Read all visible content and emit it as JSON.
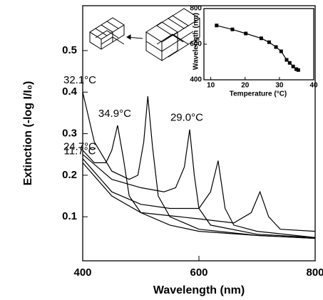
{
  "chart_data": [
    {
      "type": "line",
      "xlabel": "Wavelength (nm)",
      "ylabel": "Extinction (-log I/I₀)",
      "xlim": [
        400,
        800
      ],
      "xticks": [
        400,
        600,
        800
      ],
      "ylim": [
        -0.006,
        0.608
      ],
      "yticks": [
        0.1,
        0.2,
        0.3,
        0.4,
        0.5
      ],
      "series": [
        {
          "name": "34.9°C",
          "color": "#000000",
          "x": [
            400,
            420,
            440,
            450,
            460,
            470,
            480,
            500,
            550,
            600,
            700,
            800
          ],
          "values": [
            0.26,
            0.23,
            0.23,
            0.26,
            0.32,
            0.24,
            0.15,
            0.11,
            0.08,
            0.065,
            0.055,
            0.048
          ]
        },
        {
          "name": "32.1°C",
          "color": "#000000",
          "x": [
            400,
            420,
            450,
            480,
            495,
            505,
            512,
            520,
            530,
            550,
            600,
            700,
            800
          ],
          "values": [
            0.4,
            0.28,
            0.21,
            0.19,
            0.2,
            0.28,
            0.39,
            0.27,
            0.15,
            0.1,
            0.07,
            0.055,
            0.048
          ]
        },
        {
          "name": "29.0°C",
          "color": "#000000",
          "x": [
            400,
            450,
            500,
            540,
            560,
            575,
            584,
            592,
            600,
            620,
            700,
            800
          ],
          "values": [
            0.25,
            0.19,
            0.17,
            0.16,
            0.17,
            0.22,
            0.31,
            0.2,
            0.12,
            0.08,
            0.058,
            0.05
          ]
        },
        {
          "name": "24.7°C",
          "color": "#000000",
          "x": [
            400,
            450,
            500,
            550,
            600,
            620,
            633,
            645,
            660,
            700,
            800
          ],
          "values": [
            0.24,
            0.16,
            0.13,
            0.12,
            0.12,
            0.16,
            0.235,
            0.12,
            0.08,
            0.065,
            0.05
          ]
        },
        {
          "name": "11.7°C",
          "color": "#000000",
          "x": [
            400,
            450,
            500,
            600,
            660,
            690,
            705,
            720,
            740,
            800
          ],
          "values": [
            0.23,
            0.15,
            0.11,
            0.095,
            0.085,
            0.11,
            0.16,
            0.1,
            0.07,
            0.065
          ]
        }
      ]
    },
    {
      "type": "line",
      "xlabel": "Temperature (°C)",
      "ylabel": "Wavelength (nm)",
      "xlim": [
        8,
        40
      ],
      "xticks": [
        10,
        20,
        30,
        40
      ],
      "ylim": [
        400,
        800
      ],
      "yticks": [
        400,
        600,
        800
      ],
      "markers": true,
      "series": [
        {
          "color": "#000000",
          "x": [
            11.7,
            16.3,
            20.2,
            24.7,
            27,
            29,
            30.5,
            32.1,
            33,
            34,
            34.9,
            35.5
          ],
          "values": [
            705,
            683,
            660,
            633,
            611,
            584,
            560,
            512,
            495,
            475,
            460,
            455
          ]
        }
      ]
    }
  ]
}
